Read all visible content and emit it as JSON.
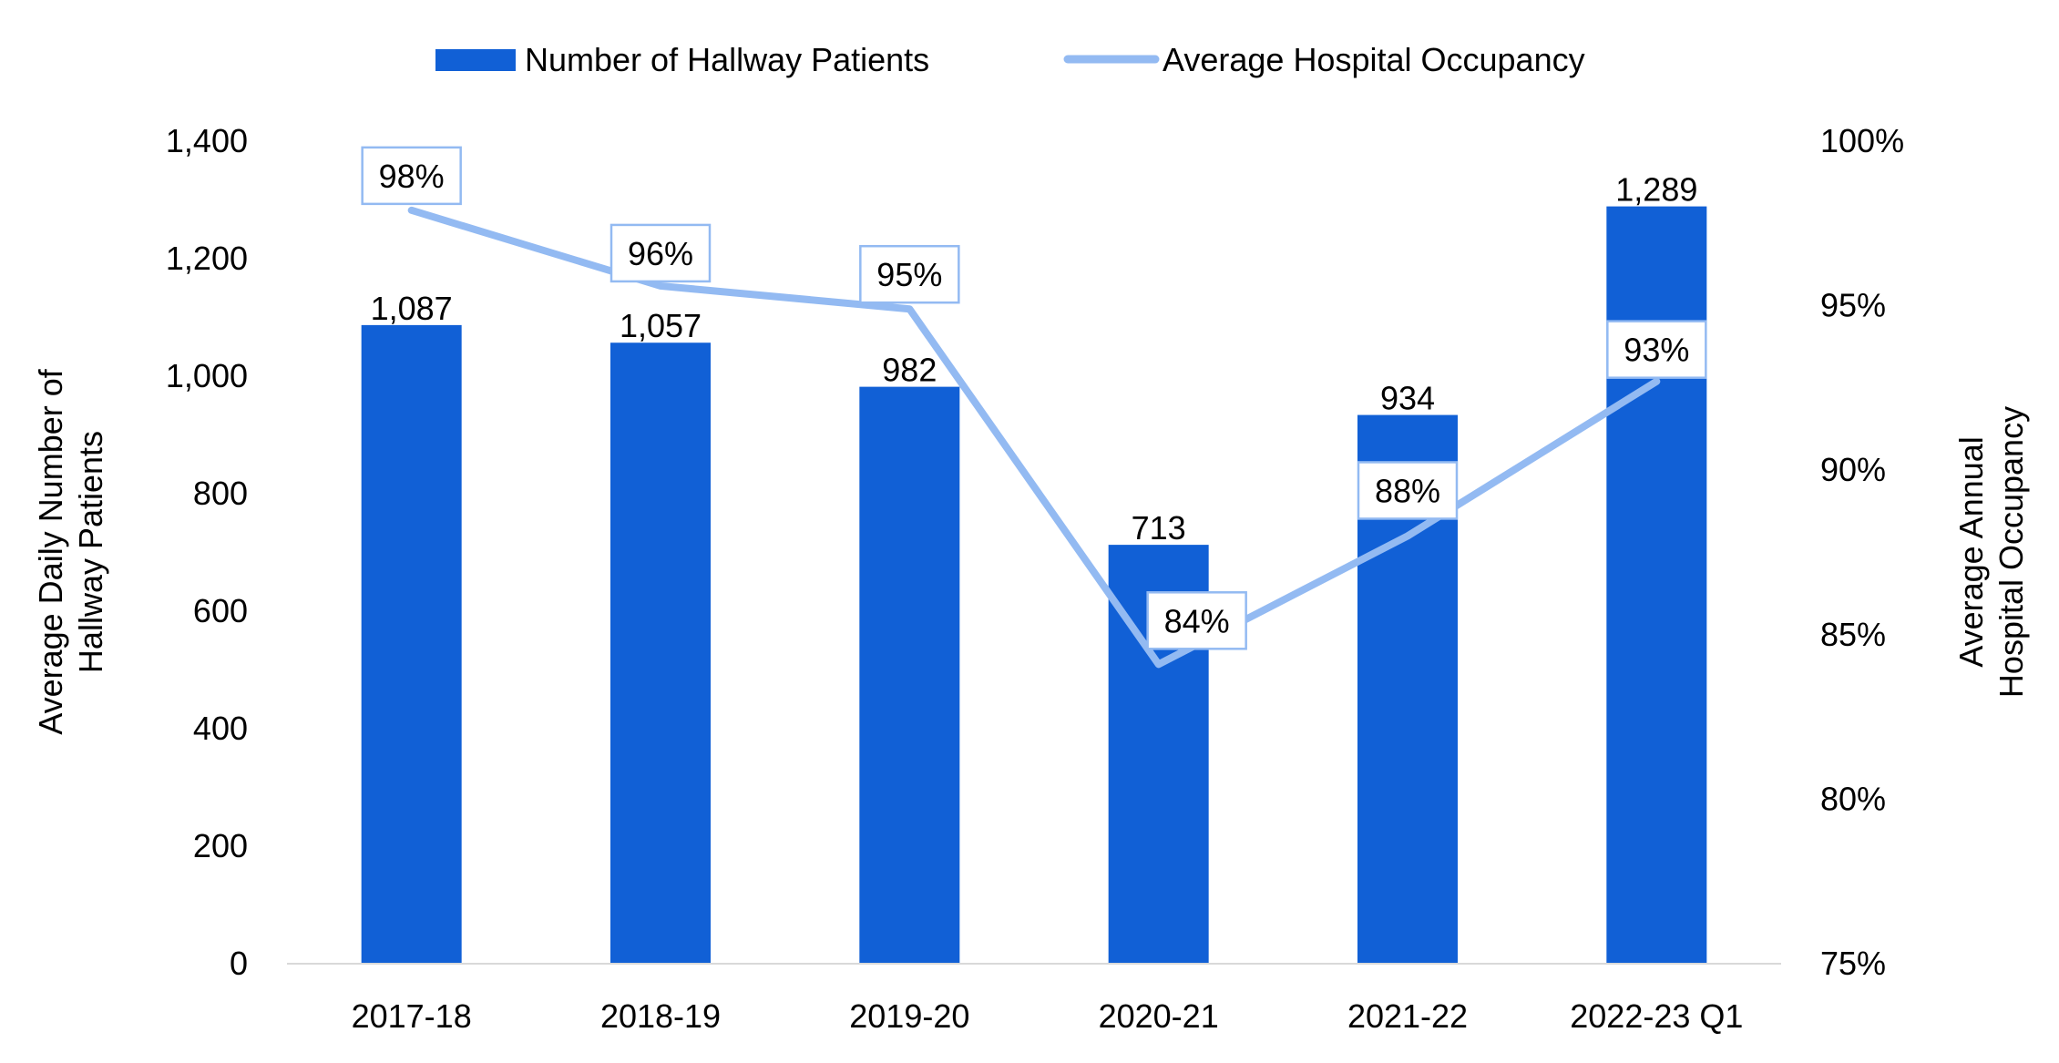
{
  "chart_data": {
    "type": "bar",
    "categories": [
      "2017-18",
      "2018-19",
      "2019-20",
      "2020-21",
      "2021-22",
      "2022-23 Q1"
    ],
    "series": [
      {
        "name": "Number of Hallway Patients",
        "kind": "bar",
        "axis": "left",
        "values": [
          1087,
          1057,
          982,
          713,
          934,
          1289
        ],
        "labels": [
          "1,087",
          "1,057",
          "982",
          "713",
          "934",
          "1,289"
        ],
        "color": "#1160D6"
      },
      {
        "name": "Average Hospital Occupancy",
        "kind": "line",
        "axis": "right",
        "values": [
          97.9,
          95.6,
          94.9,
          84.1,
          88.0,
          92.7
        ],
        "labels": [
          "98%",
          "96%",
          "95%",
          "84%",
          "88%",
          "93%"
        ],
        "color": "#93BAF2"
      }
    ],
    "ylabel": "Average Daily Number of Hallway Patients",
    "ylabel_lines": [
      "Average Daily Number of",
      "Hallway Patients"
    ],
    "ylim": [
      0,
      1400
    ],
    "yticks": [
      "0",
      "200",
      "400",
      "600",
      "800",
      "1,000",
      "1,200",
      "1,400"
    ],
    "y2label": "Average Annual Hospital Occupancy",
    "y2label_lines": [
      "Average Annual",
      "Hospital Occupancy"
    ],
    "y2lim": [
      75,
      100
    ],
    "y2ticks": [
      "75%",
      "80%",
      "85%",
      "90%",
      "95%",
      "100%"
    ],
    "legend_position": "top",
    "grid": false
  }
}
